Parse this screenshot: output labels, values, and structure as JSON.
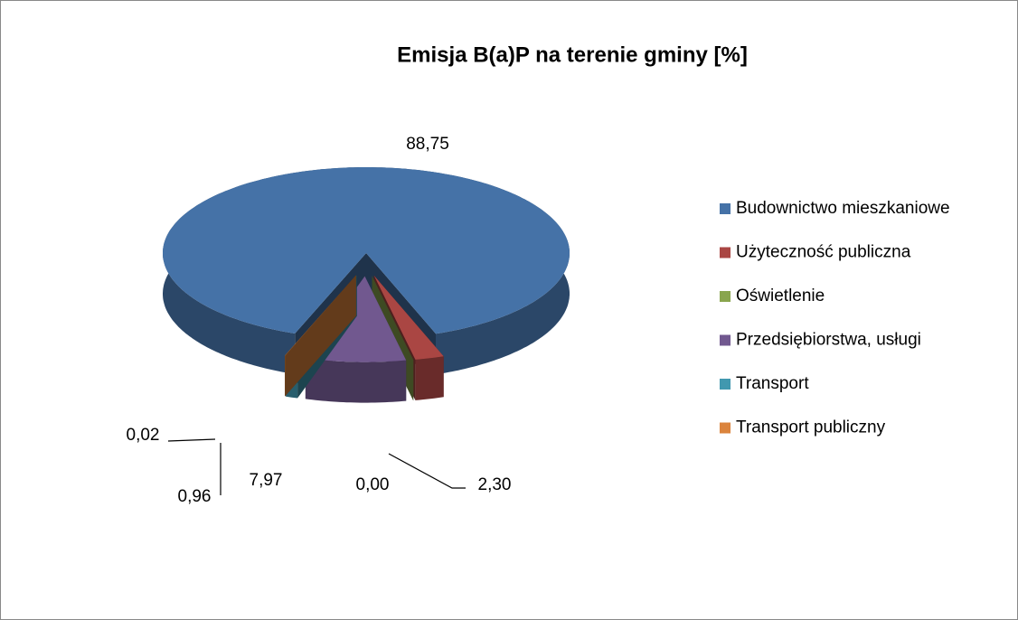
{
  "chart_data": {
    "type": "pie3d",
    "title": "Emisja B(a)P na terenie gminy [%]",
    "categories": [
      "Budownictwo mieszkaniowe",
      "Użyteczność publiczna",
      "Oświetlenie",
      "Przedsiębiorstwa, usługi",
      "Transport",
      "Transport publiczny"
    ],
    "values": [
      88.75,
      2.3,
      0.0,
      7.97,
      0.96,
      0.02
    ],
    "value_labels": [
      "88,75",
      "2,30",
      "0,00",
      "7,97",
      "0,96",
      "0,02"
    ],
    "colors": [
      "#4572a7",
      "#aa4643",
      "#89a54e",
      "#71588f",
      "#4198af",
      "#db843d"
    ],
    "legend": "right"
  }
}
